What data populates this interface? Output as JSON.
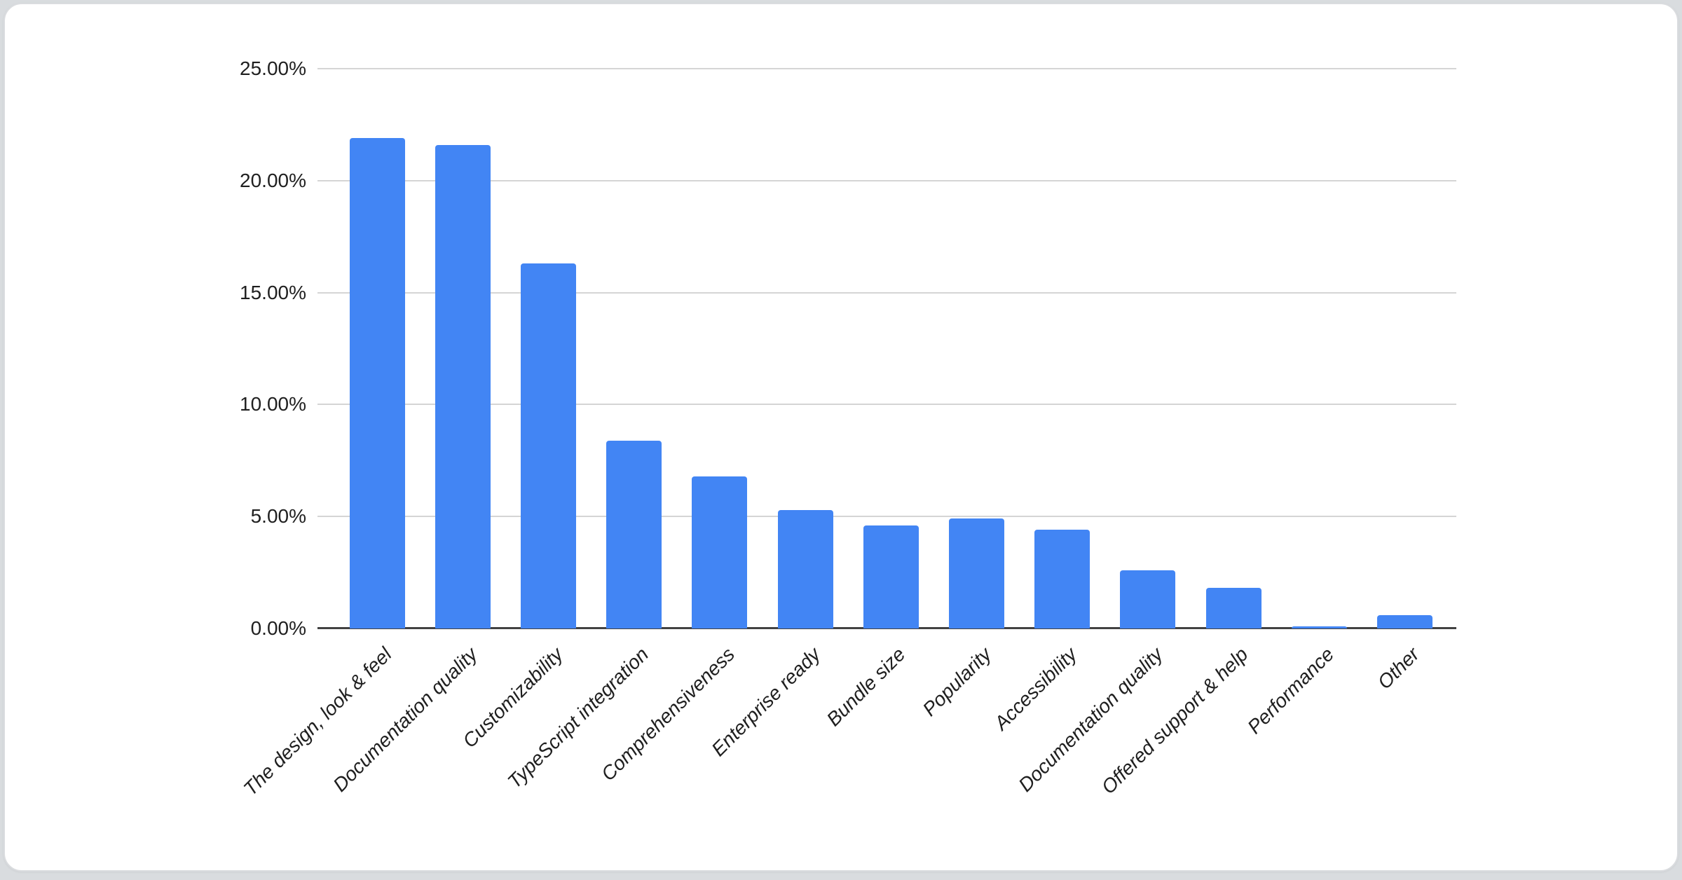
{
  "page": {
    "background_color": "#d9dcdf",
    "card_background_color": "#ffffff",
    "card_border_color": "#dadcdf"
  },
  "chart_data": {
    "type": "bar",
    "title": "",
    "xlabel": "",
    "ylabel": "",
    "categories": [
      "The design, look & feel",
      "Documentation quality",
      "Customizability",
      "TypeScript integration",
      "Comprehensiveness",
      "Enterprise ready",
      "Bundle size",
      "Popularity",
      "Accessibility",
      "Documentation quality",
      "Offered support & help",
      "Performance",
      "Other"
    ],
    "values": [
      21.9,
      21.6,
      16.3,
      8.4,
      6.8,
      5.3,
      4.6,
      4.9,
      4.4,
      2.6,
      1.8,
      0.1,
      0.6
    ],
    "unit": "%",
    "ylim": [
      0,
      25
    ],
    "ytick_step": 5,
    "ytick_labels": [
      "0.00%",
      "5.00%",
      "10.00%",
      "15.00%",
      "20.00%",
      "25.00%"
    ],
    "grid": true,
    "legend": "none",
    "bar_color": "#4285f4",
    "gridline_color": "#d5d5d5",
    "axis_line_color": "#424242",
    "label_color": "#1f1f1f"
  }
}
